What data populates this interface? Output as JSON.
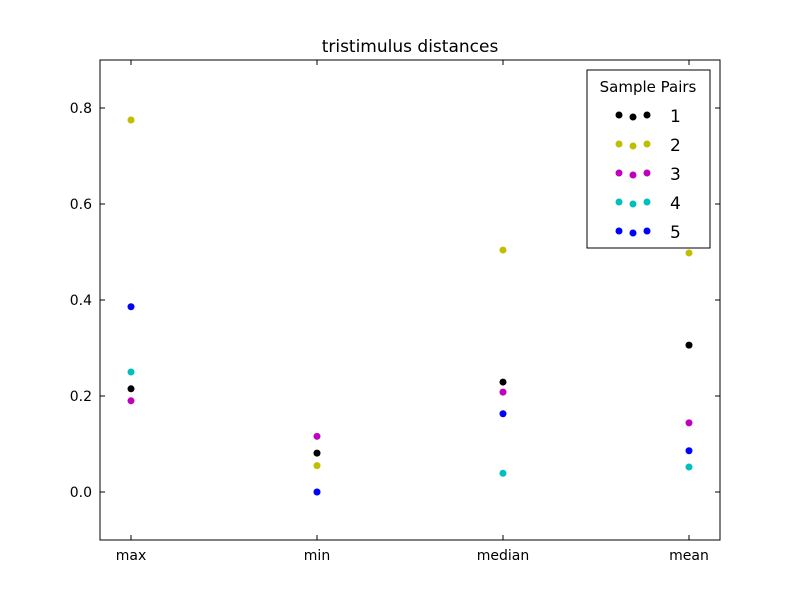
{
  "chart_data": {
    "type": "scatter",
    "title": "tristimulus distances",
    "xlabel": "",
    "ylabel": "",
    "categories": [
      "max",
      "min",
      "median",
      "mean"
    ],
    "ylim": [
      -0.1,
      0.9
    ],
    "yticks": [
      0.0,
      0.2,
      0.4,
      0.6,
      0.8
    ],
    "ytick_labels": [
      "0.0",
      "0.2",
      "0.4",
      "0.6",
      "0.8"
    ],
    "grid": false,
    "legend": {
      "title": "Sample Pairs",
      "placement": "top-right",
      "scatterpoints": 3
    },
    "series": [
      {
        "name": "1",
        "color": "#000000",
        "values": [
          0.215,
          0.081,
          0.229,
          0.306
        ]
      },
      {
        "name": "2",
        "color": "#bfbf00",
        "values": [
          0.775,
          0.055,
          0.504,
          0.498
        ]
      },
      {
        "name": "3",
        "color": "#bf00bf",
        "values": [
          0.19,
          0.116,
          0.208,
          0.144
        ]
      },
      {
        "name": "4",
        "color": "#00bfbf",
        "values": [
          0.25,
          0.0,
          0.039,
          0.052
        ]
      },
      {
        "name": "5",
        "color": "#0000ff",
        "values": [
          0.386,
          0.0,
          0.163,
          0.086
        ]
      }
    ]
  }
}
